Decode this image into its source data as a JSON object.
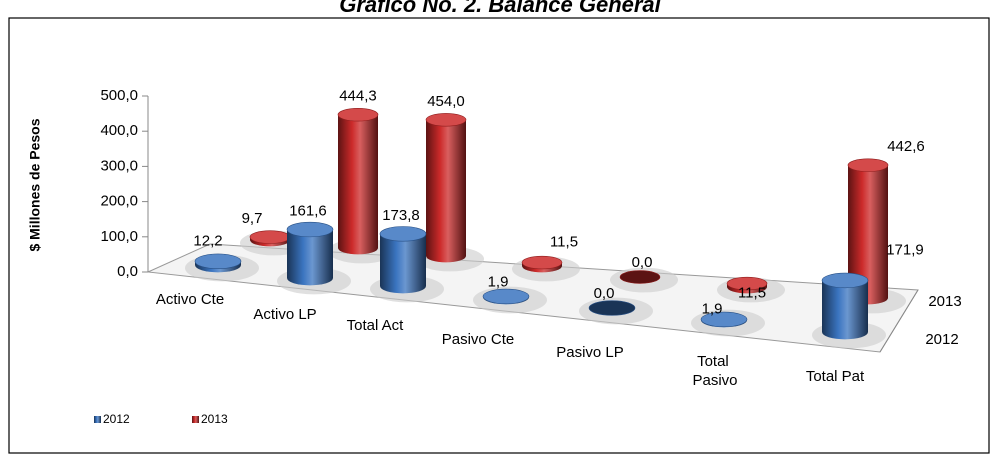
{
  "chart_data": {
    "type": "cylinder3d",
    "title": "Gráfico No. 2. Balance General",
    "y_label": "$ Millones de Pesos",
    "categories": [
      "Activo Cte",
      "Activo LP",
      "Total Act",
      "Pasivo Cte",
      "Pasivo LP",
      "Total Pasivo",
      "Total Pat"
    ],
    "series": [
      {
        "name": "2012",
        "color": "#3a74c0",
        "values": [
          12.2,
          161.6,
          173.8,
          1.9,
          0.0,
          1.9,
          171.9
        ],
        "value_labels": [
          "12,2",
          "161,6",
          "173,8",
          "1,9",
          "0,0",
          "1,9",
          "171,9"
        ]
      },
      {
        "name": "2013",
        "color": "#cc2a2a",
        "values": [
          9.7,
          444.3,
          454.0,
          11.5,
          0.0,
          11.5,
          442.6
        ],
        "value_labels": [
          "9,7",
          "444,3",
          "454,0",
          "11,5",
          "0,0",
          "11,5",
          "442,6"
        ]
      }
    ],
    "ylim": [
      0,
      500
    ],
    "yticks": [
      {
        "value": 0,
        "label": "0,0"
      },
      {
        "value": 100,
        "label": "100,0"
      },
      {
        "value": 200,
        "label": "200,0"
      },
      {
        "value": 300,
        "label": "300,0"
      },
      {
        "value": 400,
        "label": "400,0"
      },
      {
        "value": 500,
        "label": "500,0"
      }
    ],
    "legend": "bottom-left"
  }
}
